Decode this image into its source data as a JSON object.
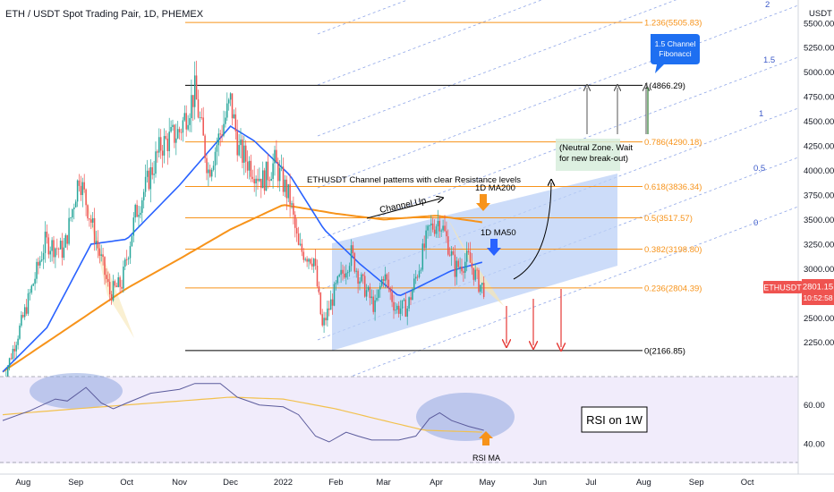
{
  "title": "ETH / USDT Spot Trading Pair, 1D, PHEMEX",
  "currency": "USDT",
  "price_badge": {
    "symbol": "ETHUSDT",
    "price": "2801.15",
    "countdown": "10:52:58"
  },
  "colors": {
    "candle_up": "#26a69a",
    "candle_down": "#ef5350",
    "ma50": "#2962ff",
    "ma200": "#f7931a",
    "fib": "#f7931a",
    "channel_fill": "#bbd0f7",
    "pitchfork": "#8fa6e8",
    "rsi": "#5b5b9c",
    "rsi_ma": "#f2c14e",
    "arrow_red": "#e53935",
    "arrow_gray": "#555555",
    "callout": "#1e6ff1"
  },
  "chart_data": {
    "type": "candlestick",
    "x_ticks": [
      "Aug",
      "Sep",
      "Oct",
      "Nov",
      "Dec",
      "2022",
      "Feb",
      "Mar",
      "Apr",
      "May",
      "Jun",
      "Jul",
      "Aug",
      "Sep",
      "Oct"
    ],
    "y_ticks": [
      "5500.00",
      "5250.00",
      "5000.00",
      "4750.00",
      "4500.00",
      "4250.00",
      "4000.00",
      "3750.00",
      "3500.00",
      "3250.00",
      "3000.00",
      "2750.00",
      "2500.00",
      "2250.00"
    ],
    "price_range": [
      2020,
      5680
    ],
    "price_path": [
      {
        "date": "2021-07-20",
        "price": 1850
      },
      {
        "date": "2021-08-01",
        "price": 2500
      },
      {
        "date": "2021-08-14",
        "price": 3270
      },
      {
        "date": "2021-08-25",
        "price": 3180
      },
      {
        "date": "2021-09-03",
        "price": 3950
      },
      {
        "date": "2021-09-21",
        "price": 2750
      },
      {
        "date": "2021-09-28",
        "price": 2850
      },
      {
        "date": "2021-10-06",
        "price": 3550
      },
      {
        "date": "2021-10-21",
        "price": 4250
      },
      {
        "date": "2021-11-01",
        "price": 4400
      },
      {
        "date": "2021-11-10",
        "price": 4800
      },
      {
        "date": "2021-11-18",
        "price": 4000
      },
      {
        "date": "2021-12-01",
        "price": 4700
      },
      {
        "date": "2021-12-06",
        "price": 4200
      },
      {
        "date": "2021-12-20",
        "price": 3900
      },
      {
        "date": "2021-12-27",
        "price": 4080
      },
      {
        "date": "2022-01-05",
        "price": 3700
      },
      {
        "date": "2022-01-10",
        "price": 3200
      },
      {
        "date": "2022-01-19",
        "price": 3100
      },
      {
        "date": "2022-01-24",
        "price": 2400
      },
      {
        "date": "2022-02-01",
        "price": 2800
      },
      {
        "date": "2022-02-10",
        "price": 3150
      },
      {
        "date": "2022-02-15",
        "price": 2900
      },
      {
        "date": "2022-02-24",
        "price": 2600
      },
      {
        "date": "2022-03-01",
        "price": 2950
      },
      {
        "date": "2022-03-08",
        "price": 2600
      },
      {
        "date": "2022-03-15",
        "price": 2600
      },
      {
        "date": "2022-03-28",
        "price": 3400
      },
      {
        "date": "2022-04-03",
        "price": 3500
      },
      {
        "date": "2022-04-08",
        "price": 3250
      },
      {
        "date": "2022-04-12",
        "price": 3000
      },
      {
        "date": "2022-04-20",
        "price": 3100
      },
      {
        "date": "2022-04-26",
        "price": 2850
      },
      {
        "date": "2022-04-29",
        "price": 2801
      }
    ],
    "ma50": [
      {
        "date": "2021-07-20",
        "price": 1950
      },
      {
        "date": "2021-08-15",
        "price": 2400
      },
      {
        "date": "2021-09-10",
        "price": 3250
      },
      {
        "date": "2021-10-01",
        "price": 3300
      },
      {
        "date": "2021-11-01",
        "price": 3850
      },
      {
        "date": "2021-12-01",
        "price": 4450
      },
      {
        "date": "2021-12-15",
        "price": 4300
      },
      {
        "date": "2022-01-05",
        "price": 3950
      },
      {
        "date": "2022-01-25",
        "price": 3400
      },
      {
        "date": "2022-02-15",
        "price": 3050
      },
      {
        "date": "2022-03-10",
        "price": 2720
      },
      {
        "date": "2022-03-20",
        "price": 2800
      },
      {
        "date": "2022-04-10",
        "price": 2980
      },
      {
        "date": "2022-04-29",
        "price": 3070
      }
    ],
    "ma200": [
      {
        "date": "2021-07-20",
        "price": 1950
      },
      {
        "date": "2021-09-01",
        "price": 2450
      },
      {
        "date": "2021-10-01",
        "price": 2800
      },
      {
        "date": "2021-11-01",
        "price": 3100
      },
      {
        "date": "2021-12-01",
        "price": 3400
      },
      {
        "date": "2022-01-01",
        "price": 3650
      },
      {
        "date": "2022-02-01",
        "price": 3560
      },
      {
        "date": "2022-03-01",
        "price": 3500
      },
      {
        "date": "2022-04-01",
        "price": 3540
      },
      {
        "date": "2022-04-29",
        "price": 3470
      }
    ],
    "fib_levels": [
      {
        "label": "1.236(5505.83)",
        "price": 5505.83,
        "color": "#f7931a"
      },
      {
        "label": "1(4866.29)",
        "price": 4866.29,
        "color": "#000000"
      },
      {
        "label": "0.786(4290.18)",
        "price": 4290.18,
        "color": "#f7931a"
      },
      {
        "label": "0.618(3836.34)",
        "price": 3836.34,
        "color": "#f7931a"
      },
      {
        "label": "0.5(3517.57)",
        "price": 3517.57,
        "color": "#f7931a"
      },
      {
        "label": "0.382(3198.80)",
        "price": 3198.8,
        "color": "#f7931a"
      },
      {
        "label": "0.236(2804.39)",
        "price": 2804.39,
        "color": "#f7931a"
      },
      {
        "label": "0(2166.85)",
        "price": 2166.85,
        "color": "#000000"
      }
    ],
    "pitchfork_labels": [
      "2",
      "1.5",
      "1",
      "0.5",
      "0"
    ],
    "rsi_ticks": [
      "60.00",
      "40.00"
    ],
    "rsi_range": [
      30,
      75
    ],
    "rsi": [
      {
        "date": "2021-07-20",
        "value": 52
      },
      {
        "date": "2021-08-05",
        "value": 57
      },
      {
        "date": "2021-08-20",
        "value": 63
      },
      {
        "date": "2021-08-27",
        "value": 62
      },
      {
        "date": "2021-09-07",
        "value": 69
      },
      {
        "date": "2021-09-16",
        "value": 61
      },
      {
        "date": "2021-09-23",
        "value": 58
      },
      {
        "date": "2021-10-01",
        "value": 61
      },
      {
        "date": "2021-10-15",
        "value": 66
      },
      {
        "date": "2021-11-01",
        "value": 68
      },
      {
        "date": "2021-11-10",
        "value": 71
      },
      {
        "date": "2021-11-25",
        "value": 71
      },
      {
        "date": "2021-12-05",
        "value": 64
      },
      {
        "date": "2021-12-18",
        "value": 60
      },
      {
        "date": "2022-01-01",
        "value": 59
      },
      {
        "date": "2022-01-10",
        "value": 55
      },
      {
        "date": "2022-01-20",
        "value": 44
      },
      {
        "date": "2022-01-28",
        "value": 41
      },
      {
        "date": "2022-02-07",
        "value": 46
      },
      {
        "date": "2022-02-14",
        "value": 44
      },
      {
        "date": "2022-02-22",
        "value": 42
      },
      {
        "date": "2022-03-10",
        "value": 42
      },
      {
        "date": "2022-03-20",
        "value": 44
      },
      {
        "date": "2022-03-28",
        "value": 53
      },
      {
        "date": "2022-04-03",
        "value": 56
      },
      {
        "date": "2022-04-10",
        "value": 52
      },
      {
        "date": "2022-04-20",
        "value": 49
      },
      {
        "date": "2022-04-29",
        "value": 47
      }
    ],
    "rsi_ma": [
      {
        "date": "2021-07-20",
        "value": 55
      },
      {
        "date": "2021-09-01",
        "value": 58
      },
      {
        "date": "2021-10-01",
        "value": 60
      },
      {
        "date": "2021-11-01",
        "value": 62
      },
      {
        "date": "2021-12-01",
        "value": 64
      },
      {
        "date": "2022-01-01",
        "value": 63
      },
      {
        "date": "2022-02-01",
        "value": 58
      },
      {
        "date": "2022-03-01",
        "value": 52
      },
      {
        "date": "2022-03-25",
        "value": 47
      },
      {
        "date": "2022-04-29",
        "value": 46
      }
    ]
  },
  "annotations": {
    "channel_text": "ETHUSDT Channel patterns with clear Resistance levels",
    "channel_up": "Channel Up",
    "ma200_label": "1D MA200",
    "ma50_label": "1D MA50",
    "neutral_zone": [
      "(Neutral Zone. Wait",
      "for new break-out)"
    ],
    "fib_callout": [
      "1.5 Channel",
      "Fibonacci"
    ],
    "rsi_box": "RSI on 1W",
    "rsi_ma": "RSI MA"
  }
}
